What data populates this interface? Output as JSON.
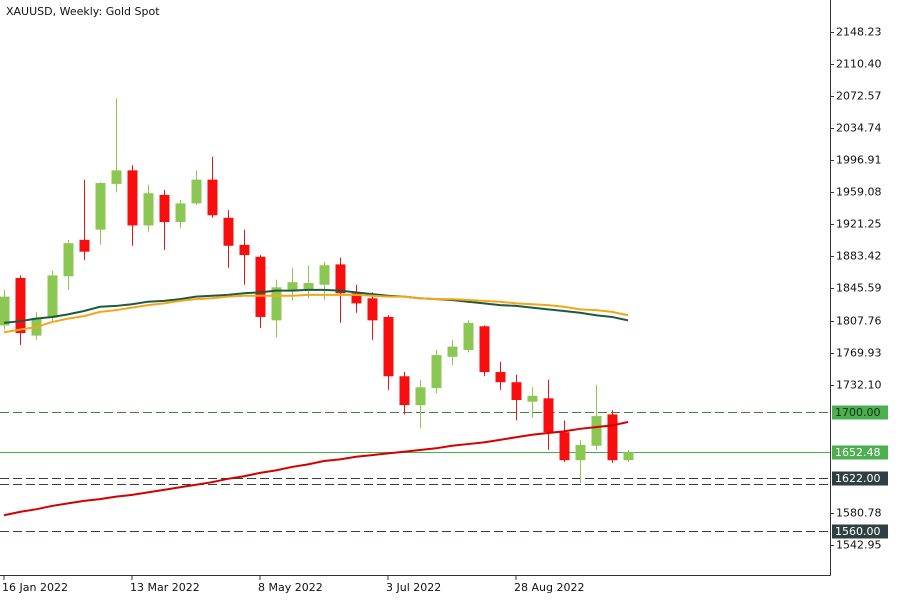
{
  "chart_data": {
    "type": "candlestick",
    "title": "XAUUSD, Weekly:  Gold Spot",
    "categories": [
      "16 Jan 2022",
      null,
      null,
      null,
      null,
      null,
      null,
      null,
      "13 Mar 2022",
      null,
      null,
      null,
      null,
      null,
      null,
      null,
      "8 May 2022",
      null,
      null,
      null,
      null,
      null,
      null,
      null,
      "3 Jul 2022",
      null,
      null,
      null,
      null,
      null,
      null,
      null,
      "28 Aug 2022",
      null,
      null,
      null,
      null,
      null,
      null,
      null
    ],
    "open": [
      1802,
      1858,
      1790,
      1811,
      1860,
      1903,
      1915,
      1969,
      1985,
      1920,
      1956,
      1924,
      1946,
      1974,
      1929,
      1897,
      1883,
      1808,
      1844,
      1844,
      1850,
      1874,
      1840,
      1834,
      1812,
      1742,
      1708,
      1728,
      1765,
      1773,
      1801,
      1747,
      1735,
      1712,
      1716,
      1676,
      1643,
      1660,
      1697,
      1643
    ],
    "high": [
      1844,
      1861,
      1818,
      1867,
      1903,
      1974,
      1971,
      2070,
      1991,
      1968,
      1962,
      1950,
      1985,
      2001,
      1938,
      1915,
      1885,
      1856,
      1870,
      1873,
      1877,
      1882,
      1850,
      1841,
      1814,
      1747,
      1738,
      1773,
      1785,
      1808,
      1802,
      1759,
      1744,
      1729,
      1738,
      1690,
      1667,
      1732,
      1702,
      1655
    ],
    "low": [
      1797,
      1779,
      1785,
      1806,
      1844,
      1879,
      1897,
      1959,
      1896,
      1912,
      1891,
      1917,
      1944,
      1929,
      1870,
      1850,
      1799,
      1788,
      1832,
      1834,
      1832,
      1805,
      1817,
      1785,
      1726,
      1697,
      1681,
      1722,
      1755,
      1770,
      1742,
      1726,
      1690,
      1693,
      1655,
      1641,
      1616,
      1655,
      1640,
      1641
    ],
    "close": [
      1836,
      1793,
      1811,
      1861,
      1899,
      1889,
      1970,
      1985,
      1920,
      1958,
      1924,
      1946,
      1974,
      1932,
      1896,
      1885,
      1812,
      1847,
      1853,
      1852,
      1873,
      1840,
      1828,
      1808,
      1742,
      1708,
      1729,
      1767,
      1777,
      1805,
      1747,
      1735,
      1714,
      1719,
      1676,
      1643,
      1661,
      1695,
      1643,
      1652.48
    ],
    "up_color": "#8cc653",
    "down_color": "#f70f0f",
    "lines": [
      {
        "color": "#1d5a3e",
        "values": [
          1805,
          1807,
          1810,
          1812,
          1815,
          1819,
          1824,
          1825,
          1827,
          1830,
          1831,
          1833,
          1836,
          1837,
          1838,
          1840,
          1841,
          1843,
          1843,
          1844,
          1844,
          1843,
          1841,
          1839,
          1837,
          1836,
          1834,
          1833,
          1832,
          1830,
          1828,
          1826,
          1825,
          1823,
          1821,
          1819,
          1817,
          1814,
          1812,
          1808
        ]
      },
      {
        "color": "#f2a71b",
        "values": [
          1794,
          1797,
          1800,
          1806,
          1810,
          1813,
          1818,
          1820,
          1823,
          1826,
          1828,
          1831,
          1833,
          1834,
          1836,
          1837,
          1837,
          1837,
          1837,
          1838,
          1838,
          1838,
          1838,
          1837,
          1836,
          1836,
          1834,
          1833,
          1833,
          1832,
          1831,
          1830,
          1828,
          1827,
          1826,
          1824,
          1821,
          1820,
          1818,
          1814
        ]
      },
      {
        "color": "#d40000",
        "values": [
          1578,
          1582,
          1585,
          1589,
          1592,
          1595,
          1597,
          1600,
          1602,
          1605,
          1608,
          1611,
          1614,
          1617,
          1621,
          1624,
          1628,
          1631,
          1635,
          1638,
          1642,
          1644,
          1647,
          1649,
          1651,
          1653,
          1655,
          1657,
          1660,
          1662,
          1664,
          1667,
          1670,
          1673,
          1675,
          1677,
          1680,
          1682,
          1684,
          1688
        ]
      }
    ],
    "levels": [
      {
        "value": 1700,
        "label": "1700.00",
        "style": "dashed",
        "color": "#3f7f3f",
        "label_bg": "#4caf50",
        "label_fg": "#10300f"
      },
      {
        "value": 1652.48,
        "style": "solid",
        "color": "#45b045",
        "label_bg": "#4caf50",
        "label_fg": "#ffffff"
      },
      {
        "value": 1622,
        "label": "1622.00",
        "style": "dashed",
        "color": "#2f3f3f",
        "label_bg": "#2f4040",
        "label_fg": "#ffffff"
      },
      {
        "value": 1615,
        "style": "dashed",
        "color": "#2f3f3f"
      },
      {
        "value": 1560,
        "label": "1560.00",
        "style": "dashed",
        "color": "#2f3f3f",
        "label_bg": "#2f4040",
        "label_fg": "#ffffff"
      }
    ],
    "ylim": [
      1507.5,
      2186
    ],
    "yticks": [
      2148.23,
      {
        "value": 2110.4,
        "label": "2110.40"
      },
      2072.57,
      2034.74,
      1996.91,
      1959.08,
      1921.25,
      1883.42,
      1845.59,
      1807.76,
      1769.93,
      {
        "value": 1732.1,
        "label": "1732.10"
      },
      1580.78,
      1542.95
    ]
  }
}
